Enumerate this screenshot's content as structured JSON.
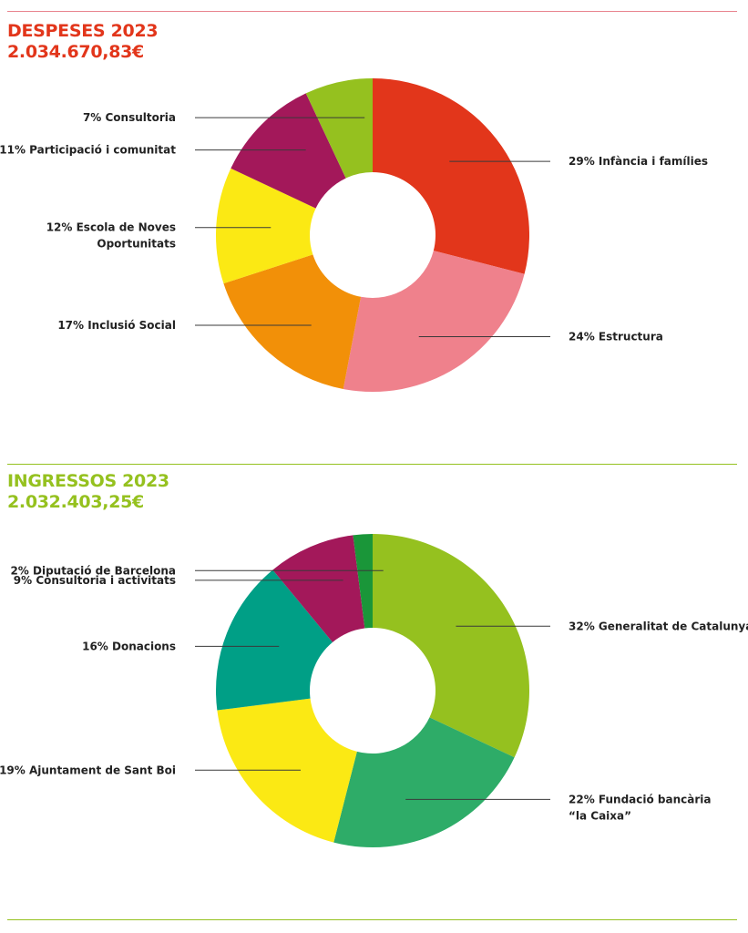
{
  "colors": {
    "expense_rule": "#e8848e",
    "income_rule": "#95c11f",
    "expense_title": "#e2361b",
    "income_title": "#95c11f"
  },
  "chart_data": [
    {
      "type": "pie",
      "variant": "donut",
      "title": "DESPESES 2023",
      "subtitle": "2.034.670,83€",
      "slices": [
        {
          "label": [
            "29% Infància i famílies"
          ],
          "value": 29,
          "color": "#e2361b"
        },
        {
          "label": [
            "24% Estructura"
          ],
          "value": 24,
          "color": "#ef818c"
        },
        {
          "label": [
            "17% Inclusió Social"
          ],
          "value": 17,
          "color": "#f29008"
        },
        {
          "label": [
            "12% Escola de Noves",
            "Oportunitats"
          ],
          "value": 12,
          "color": "#fbe914"
        },
        {
          "label": [
            "11% Participació i comunitat"
          ],
          "value": 11,
          "color": "#a3185a"
        },
        {
          "label": [
            "7% Consultoria"
          ],
          "value": 7,
          "color": "#95c11f"
        }
      ]
    },
    {
      "type": "pie",
      "variant": "donut",
      "title": "INGRESSOS 2023",
      "subtitle": "2.032.403,25€",
      "slices": [
        {
          "label": [
            "32% Generalitat de Catalunya"
          ],
          "value": 32,
          "color": "#95c11f"
        },
        {
          "label": [
            "22% Fundació bancària",
            "“la Caixa”"
          ],
          "value": 22,
          "color": "#2eac68"
        },
        {
          "label": [
            "19% Ajuntament de Sant Boi"
          ],
          "value": 19,
          "color": "#fbe914"
        },
        {
          "label": [
            "16% Donacions"
          ],
          "value": 16,
          "color": "#009f86"
        },
        {
          "label": [
            "9% Consultoria i activitats"
          ],
          "value": 9,
          "color": "#a3185a"
        },
        {
          "label": [
            "2% Diputació de Barcelona"
          ],
          "value": 2,
          "color": "#1a9639"
        }
      ]
    }
  ]
}
